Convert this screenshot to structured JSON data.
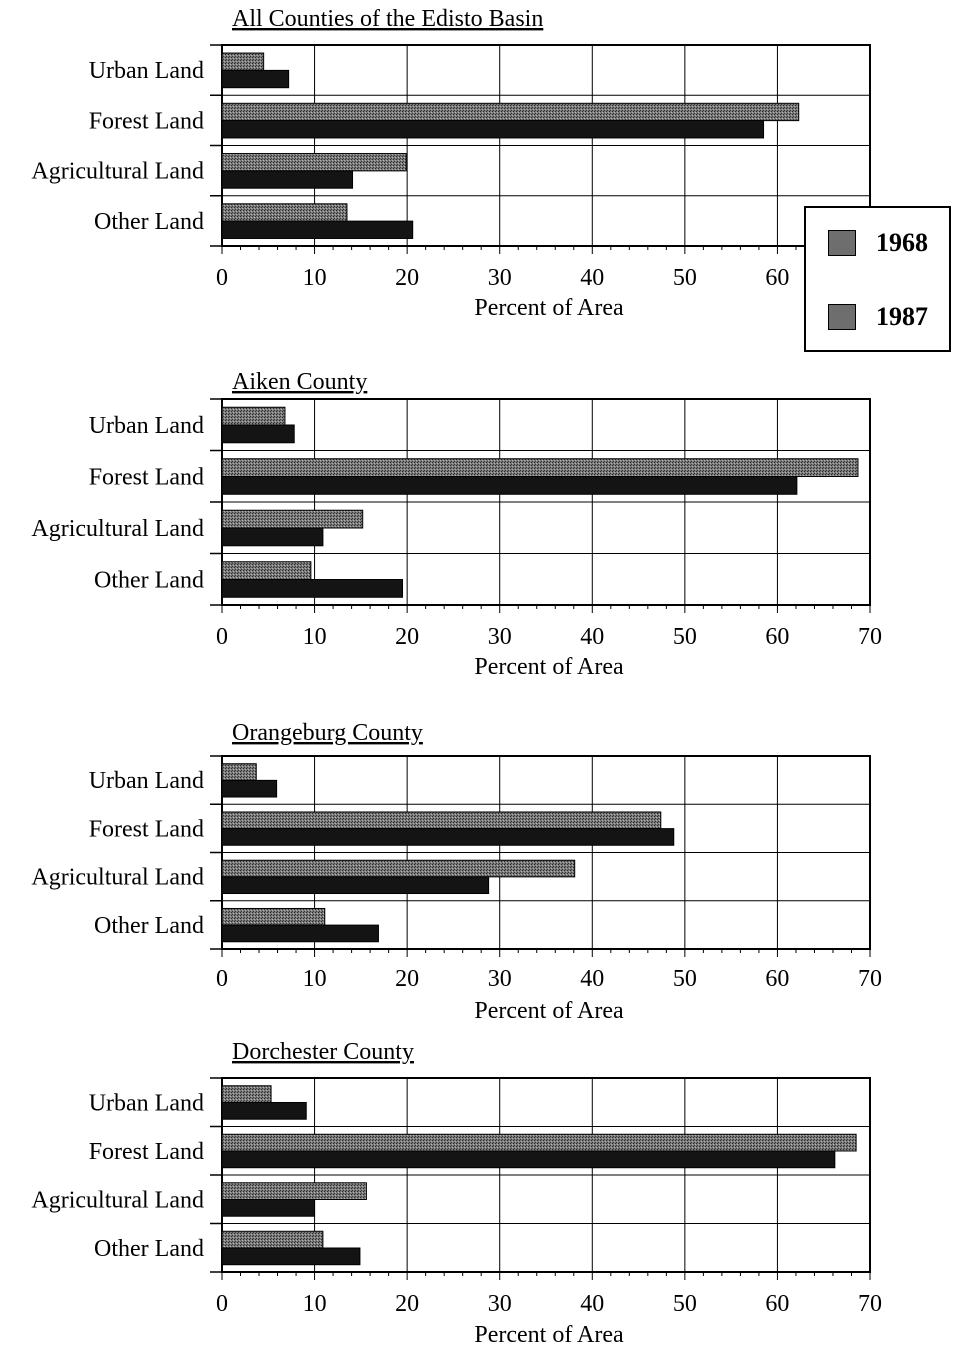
{
  "colors": {
    "s1968": "#5e5e5e",
    "s1987": "#141414"
  },
  "legend": {
    "items": [
      "1968",
      "1987"
    ]
  },
  "chart_data": [
    {
      "type": "bar",
      "orientation": "horizontal",
      "title": "All Counties of the Edisto Basin",
      "categories": [
        "Urban Land",
        "Forest Land",
        "Agricultural Land",
        "Other Land"
      ],
      "series": [
        {
          "name": "1968",
          "values": [
            4.5,
            62.3,
            19.9,
            13.5
          ]
        },
        {
          "name": "1987",
          "values": [
            7.2,
            58.5,
            14.1,
            20.6
          ]
        }
      ],
      "xlabel": "Percent of Area",
      "xticks": [
        "0",
        "10",
        "20",
        "30",
        "40",
        "50",
        "60"
      ],
      "xlim": [
        0,
        70
      ],
      "grid": true,
      "legend": "right"
    },
    {
      "type": "bar",
      "orientation": "horizontal",
      "title": "Aiken County",
      "categories": [
        "Urban Land",
        "Forest Land",
        "Agricultural Land",
        "Other Land"
      ],
      "series": [
        {
          "name": "1968",
          "values": [
            6.8,
            68.7,
            15.2,
            9.6
          ]
        },
        {
          "name": "1987",
          "values": [
            7.8,
            62.1,
            10.9,
            19.5
          ]
        }
      ],
      "xlabel": "Percent of Area",
      "xticks": [
        "0",
        "10",
        "20",
        "30",
        "40",
        "50",
        "60",
        "70"
      ],
      "xlim": [
        0,
        70
      ],
      "grid": true
    },
    {
      "type": "bar",
      "orientation": "horizontal",
      "title": "Orangeburg County",
      "categories": [
        "Urban Land",
        "Forest Land",
        "Agricultural Land",
        "Other Land"
      ],
      "series": [
        {
          "name": "1968",
          "values": [
            3.7,
            47.4,
            38.1,
            11.1
          ]
        },
        {
          "name": "1987",
          "values": [
            5.9,
            48.8,
            28.8,
            16.9
          ]
        }
      ],
      "xlabel": "Percent of Area",
      "xticks": [
        "0",
        "10",
        "20",
        "30",
        "40",
        "50",
        "60",
        "70"
      ],
      "xlim": [
        0,
        70
      ],
      "grid": true
    },
    {
      "type": "bar",
      "orientation": "horizontal",
      "title": "Dorchester County",
      "categories": [
        "Urban Land",
        "Forest Land",
        "Agricultural Land",
        "Other Land"
      ],
      "series": [
        {
          "name": "1968",
          "values": [
            5.3,
            68.5,
            15.6,
            10.9
          ]
        },
        {
          "name": "1987",
          "values": [
            9.1,
            66.2,
            10.0,
            14.9
          ]
        }
      ],
      "xlabel": "Percent of Area",
      "xticks": [
        "0",
        "10",
        "20",
        "30",
        "40",
        "50",
        "60",
        "70"
      ],
      "xlim": [
        0,
        70
      ],
      "grid": true
    }
  ]
}
